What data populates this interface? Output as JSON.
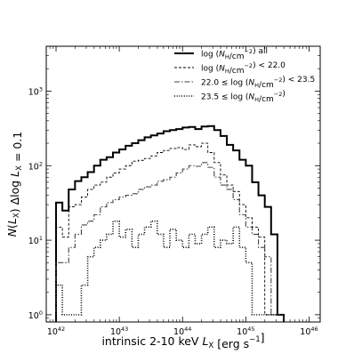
{
  "chart_data": {
    "type": "line",
    "drawstyle": "steps",
    "xlabel": "intrinsic 2-10 keV L_X [erg s^-1]",
    "ylabel": "N(L_X) Δlog L_X = 0.1",
    "xscale": "log",
    "yscale": "log",
    "xlim": [
      7e+41,
      1.5e+46
    ],
    "ylim": [
      0.8,
      4000
    ],
    "x_ticks": [
      {
        "base": "10",
        "exp": "42",
        "value": 1e+42
      },
      {
        "base": "10",
        "exp": "43",
        "value": 1e+43
      },
      {
        "base": "10",
        "exp": "44",
        "value": 1e+44
      },
      {
        "base": "10",
        "exp": "45",
        "value": 1e+45
      },
      {
        "base": "10",
        "exp": "46",
        "value": 1e+46
      }
    ],
    "y_ticks": [
      {
        "base": "10",
        "exp": "0",
        "value": 1
      },
      {
        "base": "10",
        "exp": "1",
        "value": 10
      },
      {
        "base": "10",
        "exp": "2",
        "value": 100
      },
      {
        "base": "10",
        "exp": "3",
        "value": 1000
      }
    ],
    "legend_position": "top-right",
    "bin_edges_logLx": [
      42.0,
      42.1,
      42.2,
      42.3,
      42.4,
      42.5,
      42.6,
      42.7,
      42.8,
      42.9,
      43.0,
      43.1,
      43.2,
      43.3,
      43.4,
      43.5,
      43.6,
      43.7,
      43.8,
      43.9,
      44.0,
      44.1,
      44.2,
      44.3,
      44.4,
      44.5,
      44.6,
      44.7,
      44.8,
      44.9,
      45.0,
      45.1,
      45.2,
      45.3,
      45.4,
      45.5,
      45.6
    ],
    "series": [
      {
        "name": "log(N_H/cm^-2) all",
        "color": "#000000",
        "dash": "",
        "width": 2.0,
        "values": [
          32,
          25,
          48,
          62,
          70,
          82,
          100,
          120,
          130,
          150,
          165,
          185,
          200,
          220,
          240,
          255,
          270,
          290,
          300,
          310,
          325,
          330,
          310,
          335,
          340,
          300,
          250,
          190,
          160,
          120,
          100,
          60,
          40,
          28,
          12,
          1.0
        ]
      },
      {
        "name": "log(N_H/cm^-2) < 22.0",
        "color": "#000000",
        "dash": "3,2",
        "width": 0.9,
        "values": [
          15,
          11,
          28,
          30,
          38,
          48,
          55,
          60,
          70,
          80,
          90,
          100,
          115,
          118,
          125,
          135,
          150,
          160,
          170,
          175,
          165,
          190,
          180,
          200,
          150,
          110,
          75,
          55,
          45,
          30,
          20,
          15,
          11,
          1.0,
          1.0,
          1.0
        ]
      },
      {
        "name": "22.0 ≤ log(N_H/cm^-2) < 23.5",
        "color": "#444444",
        "dash": "6,2,1.5,2",
        "width": 1.1,
        "values": [
          5,
          5,
          8,
          12,
          16,
          18,
          22,
          28,
          32,
          35,
          38,
          40,
          42,
          48,
          52,
          55,
          62,
          65,
          70,
          80,
          90,
          100,
          98,
          110,
          95,
          70,
          55,
          48,
          35,
          22,
          15,
          12,
          8,
          6,
          1.0,
          1.0
        ]
      },
      {
        "name": "23.5 ≤ log(N_H/cm^-2)",
        "color": "#000000",
        "dash": "1,1.7",
        "width": 1.6,
        "values": [
          2.5,
          1.0,
          1.0,
          1.0,
          2.5,
          6,
          8,
          10,
          12,
          18,
          11,
          14,
          8,
          12,
          15,
          18,
          12,
          8,
          14,
          10,
          8,
          12,
          9,
          12,
          15,
          8,
          10,
          9,
          15,
          8,
          5,
          1.0,
          1.0,
          1.0,
          1.0,
          1.0
        ]
      }
    ]
  }
}
